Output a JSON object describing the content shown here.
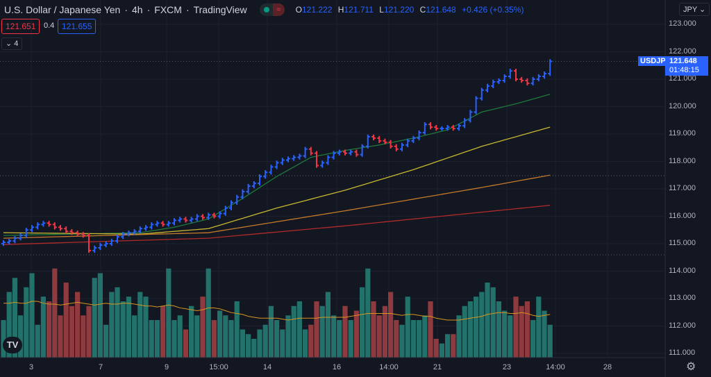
{
  "header": {
    "title": "U.S. Dollar / Japanese Yen",
    "interval": "4h",
    "source": "FXCM",
    "platform": "TradingView",
    "wave_icon": "≈",
    "ohlc": {
      "o_label": "O",
      "o": "121.222",
      "h_label": "H",
      "h": "121.711",
      "l_label": "L",
      "l": "121.220",
      "c_label": "C",
      "c": "121.648",
      "change": "+0.426 (+0.35%)"
    }
  },
  "quotes": {
    "sell": "121.651",
    "spread": "0.4",
    "buy": "121.655"
  },
  "indicators_toggle": {
    "icon": "chevron-down",
    "count": "4"
  },
  "currency": "JPY ⌄",
  "price_axis": {
    "labels": [
      "123.000",
      "122.000",
      "121.000",
      "120.000",
      "119.000",
      "118.000",
      "117.000",
      "116.000",
      "115.000",
      "114.000",
      "113.000",
      "112.000",
      "111.000"
    ],
    "symbol_tag": "USDJPY",
    "last_price": "121.648",
    "countdown": "01:48:15"
  },
  "time_axis": [
    "3",
    "7",
    "9",
    "15:00",
    "14",
    "16",
    "14:00",
    "21",
    "23",
    "14:00",
    "28"
  ],
  "colors": {
    "up": "#2962ff",
    "down": "#f23645",
    "vol_up": "#22716b",
    "vol_down": "#8f3a3f",
    "ma1": "#1e7a3a",
    "ma2": "#c8b830",
    "ma3": "#c57a2a",
    "ma4": "#b22a2a",
    "vol_ma": "#d9961e"
  },
  "chart_data": {
    "type": "ohlc",
    "ylim": [
      110.6,
      123.4
    ],
    "closes": [
      115.05,
      115.1,
      115.2,
      115.3,
      115.5,
      115.6,
      115.7,
      115.75,
      115.7,
      115.6,
      115.55,
      115.45,
      115.4,
      115.35,
      115.3,
      114.75,
      114.85,
      114.95,
      115.0,
      115.1,
      115.25,
      115.35,
      115.4,
      115.45,
      115.55,
      115.6,
      115.7,
      115.75,
      115.7,
      115.75,
      115.85,
      115.9,
      115.85,
      115.9,
      116.0,
      115.95,
      116.05,
      116.0,
      116.1,
      116.3,
      116.5,
      116.7,
      116.9,
      117.1,
      117.2,
      117.45,
      117.6,
      117.8,
      117.95,
      118.05,
      118.1,
      118.15,
      118.2,
      118.45,
      118.3,
      117.85,
      117.95,
      118.15,
      118.3,
      118.35,
      118.3,
      118.35,
      118.25,
      118.55,
      118.9,
      118.85,
      118.75,
      118.7,
      118.55,
      118.45,
      118.6,
      118.75,
      118.85,
      119.05,
      119.35,
      119.25,
      119.2,
      119.2,
      119.25,
      119.2,
      119.3,
      119.5,
      119.8,
      120.3,
      120.6,
      120.75,
      120.9,
      120.95,
      121.1,
      121.3,
      121.0,
      120.95,
      120.85,
      121.0,
      121.1,
      121.2,
      121.648
    ],
    "volume": [
      40,
      70,
      85,
      45,
      75,
      90,
      35,
      65,
      60,
      95,
      45,
      80,
      55,
      70,
      45,
      55,
      85,
      90,
      35,
      70,
      75,
      60,
      65,
      45,
      70,
      65,
      40,
      40,
      55,
      95,
      40,
      45,
      30,
      55,
      45,
      65,
      95,
      40,
      50,
      45,
      40,
      60,
      30,
      25,
      20,
      30,
      35,
      55,
      40,
      30,
      45,
      55,
      60,
      30,
      35,
      60,
      55,
      70,
      45,
      40,
      55,
      40,
      50,
      75,
      95,
      60,
      45,
      55,
      70,
      40,
      35,
      65,
      40,
      40,
      45,
      60,
      20,
      15,
      25,
      25,
      45,
      55,
      60,
      65,
      70,
      80,
      75,
      60,
      50,
      45,
      65,
      55,
      60,
      40,
      65,
      50,
      35
    ],
    "volume_ma": [
      58,
      58,
      59,
      58,
      58,
      60,
      60,
      58,
      57,
      57,
      56,
      57,
      58,
      59,
      58,
      57,
      56,
      57,
      58,
      57,
      57,
      58,
      58,
      57,
      56,
      55,
      55,
      54,
      55,
      56,
      55,
      53,
      52,
      51,
      50,
      51,
      53,
      53,
      52,
      50,
      48,
      47,
      46,
      44,
      43,
      42,
      42,
      42,
      42,
      41,
      40,
      41,
      42,
      42,
      42,
      42,
      43,
      43,
      43,
      43,
      43,
      44,
      45,
      46,
      47,
      47,
      47,
      47,
      47,
      46,
      45,
      46,
      46,
      45,
      44,
      44,
      42,
      41,
      40,
      40,
      40,
      41,
      42,
      43,
      44,
      46,
      47,
      48,
      48,
      47,
      47,
      48,
      47,
      45,
      44,
      45,
      46
    ],
    "moving_averages": [
      {
        "sample_bars": [
          0,
          12,
          24,
          30,
          36,
          42,
          48,
          54,
          60,
          66,
          72,
          78,
          84,
          90,
          96
        ],
        "values": [
          115.3,
          115.35,
          115.4,
          115.6,
          115.9,
          116.65,
          117.45,
          118.15,
          118.4,
          118.6,
          118.85,
          119.15,
          119.8,
          120.1,
          120.45
        ]
      },
      {
        "sample_bars": [
          0,
          24,
          36,
          48,
          60,
          72,
          84,
          96
        ],
        "values": [
          115.4,
          115.35,
          115.55,
          116.3,
          116.95,
          117.7,
          118.55,
          119.25
        ]
      },
      {
        "sample_bars": [
          0,
          36,
          60,
          84,
          96
        ],
        "values": [
          115.2,
          115.4,
          116.2,
          117.05,
          117.5
        ]
      },
      {
        "sample_bars": [
          0,
          36,
          60,
          84,
          96
        ],
        "values": [
          114.97,
          115.2,
          115.65,
          116.15,
          116.4
        ]
      }
    ]
  }
}
